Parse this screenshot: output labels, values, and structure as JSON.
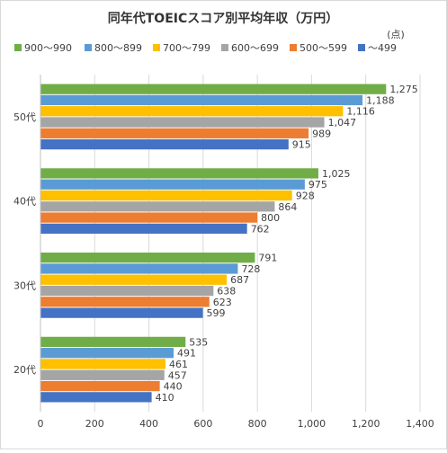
{
  "chart_data": {
    "type": "bar",
    "orientation": "horizontal",
    "title": "同年代TOEICスコア別平均年収（万円）",
    "unit_label": "(点)",
    "categories": [
      "50代",
      "40代",
      "30代",
      "20代"
    ],
    "series": [
      {
        "name": "900～990",
        "color": "#70ad47",
        "values": [
          1275,
          1025,
          791,
          535
        ],
        "labels": [
          "1,275",
          "1,025",
          "791",
          "535"
        ]
      },
      {
        "name": "800～899",
        "color": "#5b9bd5",
        "values": [
          1188,
          975,
          728,
          491
        ],
        "labels": [
          "1,188",
          "975",
          "728",
          "491"
        ]
      },
      {
        "name": "700～799",
        "color": "#ffc000",
        "values": [
          1116,
          928,
          687,
          461
        ],
        "labels": [
          "1,116",
          "928",
          "687",
          "461"
        ]
      },
      {
        "name": "600～699",
        "color": "#a5a5a5",
        "values": [
          1047,
          864,
          638,
          457
        ],
        "labels": [
          "1,047",
          "864",
          "638",
          "457"
        ]
      },
      {
        "name": "500～599",
        "color": "#ed7d31",
        "values": [
          989,
          800,
          623,
          440
        ],
        "labels": [
          "989",
          "800",
          "623",
          "440"
        ]
      },
      {
        "name": "～499",
        "color": "#4472c4",
        "values": [
          915,
          762,
          599,
          410
        ],
        "labels": [
          "915",
          "762",
          "599",
          "410"
        ]
      }
    ],
    "xlim": [
      0,
      1400
    ],
    "xticks": [
      0,
      200,
      400,
      600,
      800,
      1000,
      1200,
      1400
    ],
    "xtick_labels": [
      "0",
      "200",
      "400",
      "600",
      "800",
      "1,000",
      "1,200",
      "1,400"
    ],
    "grid": "vertical",
    "legend_position": "top"
  }
}
